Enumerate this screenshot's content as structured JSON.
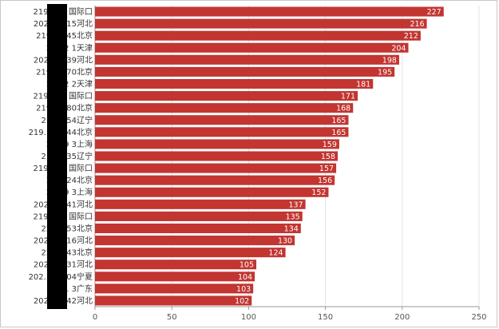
{
  "chart_data": {
    "type": "bar",
    "orientation": "horizontal",
    "categories": [
      "219.158 国际口",
      "202.99. 15河北",
      "219.14 45北京",
      "221.2 1天津",
      "202.99. 39河北",
      "219.14 70北京",
      "221.2 2天津",
      "219.158 国际口",
      "219.14 80北京",
      "218.2 54辽宁",
      "219.141. 44北京",
      "202.9 3上海",
      "218.2 35辽宁",
      "219.158 国际口",
      "218. 24北京",
      "202.9 3上海",
      "202.99. 41河北",
      "219.158 国际口",
      "220.1 53北京",
      "202.99. 16河北",
      "220.1 43北京",
      "202.99. 31河北",
      "202.100. 04宁夏",
      "221 3广东",
      "202.99. 42河北"
    ],
    "values": [
      227,
      216,
      212,
      204,
      198,
      195,
      181,
      171,
      168,
      165,
      165,
      159,
      158,
      157,
      156,
      152,
      137,
      135,
      134,
      130,
      124,
      105,
      104,
      103,
      102
    ],
    "xlim": [
      0,
      250
    ],
    "xticks": [
      0,
      50,
      100,
      150,
      200,
      250
    ],
    "grid": true,
    "bar_color": "#c23531",
    "redaction_color": "#000000"
  }
}
